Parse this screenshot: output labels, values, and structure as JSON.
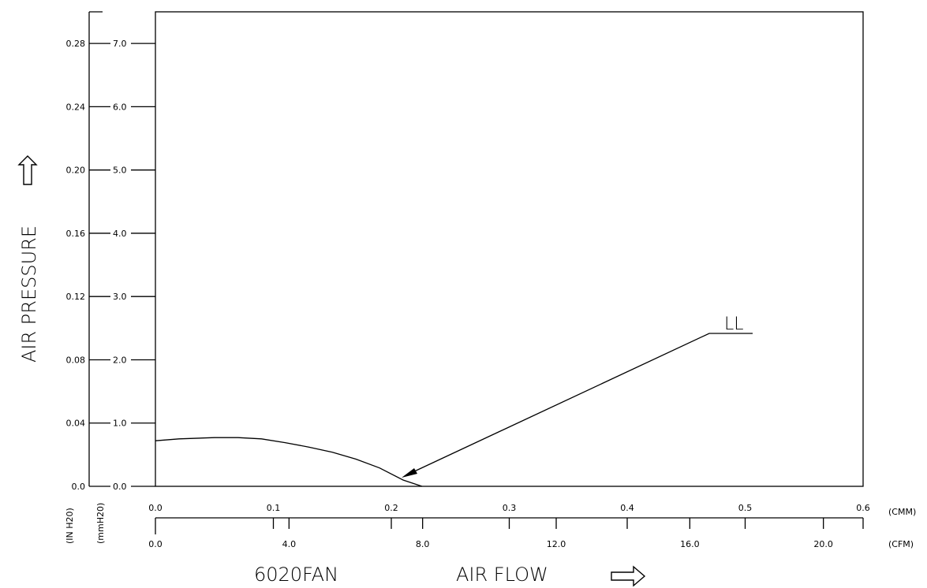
{
  "chart_data": {
    "type": "line",
    "title": "",
    "ylabel": "AIR PRESSURE",
    "xlabel": "AIR FLOW",
    "fan_model": "6020FAN",
    "y_axis_mmH2O": {
      "unit": "(mmH20)",
      "ticks": [
        "0.0",
        "1.0",
        "2.0",
        "3.0",
        "4.0",
        "5.0",
        "6.0",
        "7.0"
      ],
      "range": [
        0,
        7.5
      ]
    },
    "y_axis_inH2O": {
      "unit": "(IN H20)",
      "ticks": [
        "0.0",
        "0.04",
        "0.08",
        "0.12",
        "0.16",
        "0.20",
        "0.24",
        "0.28"
      ]
    },
    "x_axis_cmm": {
      "unit": "(CMM)",
      "ticks": [
        "0.0",
        "0.1",
        "0.2",
        "0.3",
        "0.4",
        "0.5",
        "0.6"
      ],
      "range": [
        0,
        0.6
      ]
    },
    "x_axis_cfm": {
      "unit": "(CFM)",
      "ticks": [
        "0.0",
        "4.0",
        "8.0",
        "12.0",
        "16.0",
        "20.0"
      ]
    },
    "series": [
      {
        "name": "LL",
        "x_cmm": [
          0.0,
          0.02,
          0.05,
          0.07,
          0.09,
          0.11,
          0.13,
          0.15,
          0.17,
          0.19,
          0.21,
          0.226
        ],
        "y_mmH2O": [
          0.72,
          0.75,
          0.77,
          0.77,
          0.75,
          0.69,
          0.62,
          0.54,
          0.43,
          0.29,
          0.1,
          0.0
        ]
      }
    ],
    "grid": false
  }
}
